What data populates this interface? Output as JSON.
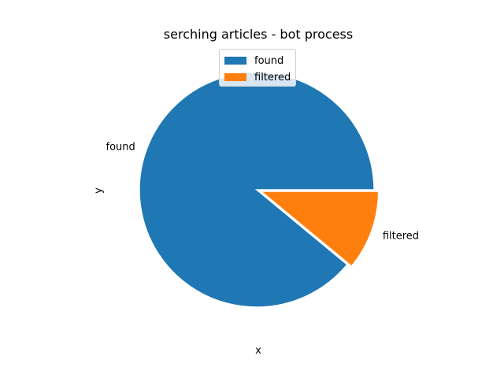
{
  "chart_data": {
    "type": "pie",
    "title": "serching articles - bot process",
    "xlabel": "x",
    "ylabel": "y",
    "categories": [
      "found",
      "filtered"
    ],
    "values": [
      89,
      11
    ],
    "colors": [
      "#1f77b4",
      "#ff7f0e"
    ],
    "explode": [
      0,
      0.04
    ],
    "legend": {
      "placement": "upper-center",
      "entries": [
        "found",
        "filtered"
      ]
    }
  }
}
